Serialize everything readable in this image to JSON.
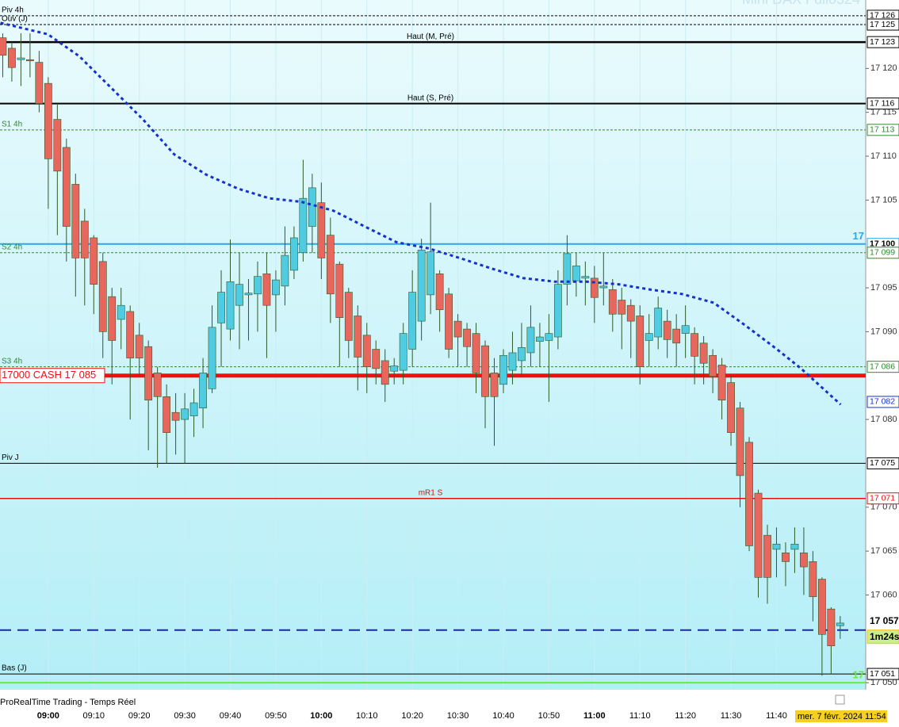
{
  "chart_data": {
    "type": "candlestick",
    "title": "Mini DAX Full0324",
    "source": "ProRealTime Trading - Temps Réel",
    "date": "mer. 7 févr. 2024 11:54",
    "up_color": "#4fcbe2",
    "down_color": "#e8675d",
    "wick_color": "#2f5a2a",
    "xlim": [
      529.4,
      719.6
    ],
    "ylim": [
      17049.2,
      17127.8
    ],
    "xticks": [
      {
        "value": 540,
        "label": "09:00"
      },
      {
        "value": 550,
        "label": "09:10"
      },
      {
        "value": 560,
        "label": "09:20"
      },
      {
        "value": 570,
        "label": "09:30"
      },
      {
        "value": 580,
        "label": "09:40"
      },
      {
        "value": 590,
        "label": "09:50"
      },
      {
        "value": 600,
        "label": "10:00"
      },
      {
        "value": 610,
        "label": "10:10"
      },
      {
        "value": 620,
        "label": "10:20"
      },
      {
        "value": 630,
        "label": "10:30"
      },
      {
        "value": 640,
        "label": "10:40"
      },
      {
        "value": 650,
        "label": "10:50"
      },
      {
        "value": 660,
        "label": "11:00"
      },
      {
        "value": 670,
        "label": "11:10"
      },
      {
        "value": 680,
        "label": "11:20"
      },
      {
        "value": 690,
        "label": "11:30"
      },
      {
        "value": 700,
        "label": "11:40"
      }
    ],
    "yticks": [
      {
        "value": 17050,
        "label": "17 050"
      },
      {
        "value": 17060,
        "label": "17 060"
      },
      {
        "value": 17065,
        "label": "17 065"
      },
      {
        "value": 17070,
        "label": "17 070"
      },
      {
        "value": 17080,
        "label": "17 080"
      },
      {
        "value": 17090,
        "label": "17 090"
      },
      {
        "value": 17095,
        "label": "17 095"
      },
      {
        "value": 17105,
        "label": "17 105"
      },
      {
        "value": 17110,
        "label": "17 110"
      },
      {
        "value": 17115,
        "label": "17 115"
      },
      {
        "value": 17120,
        "label": "17 120"
      }
    ],
    "x": [
      530,
      532,
      534,
      536,
      538,
      540,
      542,
      544,
      546,
      548,
      550,
      552,
      554,
      556,
      558,
      560,
      562,
      564,
      566,
      568,
      570,
      572,
      574,
      576,
      578,
      580,
      582,
      584,
      586,
      588,
      590,
      592,
      594,
      596,
      598,
      600,
      602,
      604,
      606,
      608,
      610,
      612,
      614,
      616,
      618,
      620,
      622,
      624,
      626,
      628,
      630,
      632,
      634,
      636,
      638,
      640,
      642,
      644,
      646,
      648,
      650,
      652,
      654,
      656,
      658,
      660,
      662,
      664,
      666,
      668,
      670,
      672,
      674,
      676,
      678,
      680,
      682,
      684,
      686,
      688,
      690,
      692,
      694,
      696,
      698,
      700,
      702,
      704,
      706,
      708,
      710,
      712,
      714
    ],
    "open": [
      17123.5,
      17122.3,
      17121,
      17121,
      17120.7,
      17118.3,
      17114.2,
      17111,
      17106.8,
      17102.6,
      17100.7,
      17098,
      17094,
      17091.4,
      17092.3,
      17089.6,
      17088.3,
      17085.3,
      17082.6,
      17080.8,
      17080,
      17080.4,
      17081.3,
      17083.5,
      17091,
      17090.3,
      17093,
      17094.2,
      17094.3,
      17096.6,
      17094.2,
      17095.2,
      17097,
      17099,
      17102,
      17104.7,
      17101,
      17097.7,
      17094.5,
      17091.8,
      17089.6,
      17088,
      17086.7,
      17085.5,
      17085.6,
      17088,
      17091.2,
      17094.2,
      17096.6,
      17094.3,
      17091.2,
      17090.3,
      17089.8,
      17088.4,
      17085.3,
      17084,
      17085.6,
      17086.7,
      17087.6,
      17088.9,
      17089,
      17089.4,
      17095.4,
      17095.8,
      17096.1,
      17096.1,
      17095,
      17094.8,
      17093.6,
      17093,
      17091.8,
      17089,
      17089.4,
      17091.2,
      17090.3,
      17089.8,
      17089.8,
      17088.7,
      17087.3,
      17086.2,
      17084.2,
      17081.3,
      17077.4,
      17071.6,
      17066.8,
      17065.2,
      17064.8,
      17065.2,
      17064.8,
      17063.8,
      17061.8,
      17058.4,
      17056.5
    ],
    "high": [
      17124,
      17123,
      17124,
      17124,
      17122,
      17119,
      17116,
      17112,
      17108,
      17104,
      17101,
      17099,
      17095,
      17095,
      17093,
      17091,
      17089,
      17086,
      17084,
      17083,
      17083,
      17083.5,
      17087,
      17093,
      17097,
      17100.5,
      17099,
      17096,
      17098,
      17099,
      17097,
      17102,
      17102,
      17109.6,
      17108,
      17107,
      17103,
      17098,
      17095,
      17093,
      17091,
      17089,
      17088,
      17087,
      17091,
      17097,
      17100.6,
      17104.7,
      17097,
      17095,
      17092,
      17091,
      17091,
      17089,
      17087,
      17088,
      17090,
      17091,
      17093,
      17091,
      17092,
      17097,
      17101,
      17099,
      17098,
      17097.5,
      17099,
      17096,
      17095,
      17093.7,
      17093,
      17092,
      17094,
      17092.5,
      17092,
      17093,
      17090.5,
      17089.5,
      17088,
      17087,
      17085,
      17082,
      17078,
      17072,
      17068,
      17067.7,
      17066,
      17067.7,
      17067.7,
      17065,
      17062,
      17058.6,
      17057.6
    ],
    "low": [
      17119,
      17118.5,
      17118,
      17119,
      17115,
      17104,
      17101,
      17098,
      17094,
      17093,
      17092,
      17087,
      17084,
      17088,
      17080,
      17085,
      17076.5,
      17074.5,
      17075,
      17076,
      17075,
      17078,
      17079,
      17083,
      17086,
      17089,
      17088,
      17089,
      17090,
      17087,
      17090,
      17093,
      17096,
      17098,
      17099,
      17096,
      17091,
      17086,
      17087,
      17083.3,
      17083,
      17084,
      17082,
      17084,
      17084,
      17086,
      17089,
      17092,
      17090,
      17087,
      17086,
      17086,
      17083,
      17079,
      17077,
      17083,
      17084,
      17085,
      17086,
      17086,
      17082,
      17088,
      17093,
      17094,
      17093,
      17091,
      17093,
      17090,
      17088,
      17087,
      17084,
      17086,
      17088,
      17087,
      17086,
      17087,
      17084,
      17084,
      17083,
      17080,
      17077,
      17070,
      17065,
      17059.7,
      17059,
      17062,
      17061,
      17062.5,
      17060,
      17057,
      17050.8,
      17051,
      17055
    ],
    "close": [
      17121.5,
      17120.1,
      17121.2,
      17120.9,
      17116,
      17109.7,
      17108.3,
      17102,
      17098.4,
      17098.4,
      17095.4,
      17090,
      17089,
      17093,
      17087,
      17087,
      17082.2,
      17082.6,
      17078.5,
      17079.9,
      17081.2,
      17081.9,
      17085.3,
      17090.5,
      17094.5,
      17095.7,
      17095.4,
      17094.4,
      17096.3,
      17093,
      17095.9,
      17098.7,
      17100.7,
      17105.2,
      17106.4,
      17098.4,
      17094.3,
      17091.6,
      17089,
      17087.1,
      17086,
      17085.8,
      17084,
      17086.1,
      17089.8,
      17094.5,
      17099.3,
      17099.1,
      17092.5,
      17088,
      17089.4,
      17088.3,
      17085.3,
      17082.6,
      17082.6,
      17087.3,
      17087.6,
      17088.2,
      17090.5,
      17089.4,
      17089.8,
      17095.4,
      17098.9,
      17097.5,
      17096.3,
      17093.9,
      17095.2,
      17092,
      17092,
      17091.2,
      17086,
      17089.8,
      17092.7,
      17089.1,
      17088.7,
      17090.7,
      17087.2,
      17086.4,
      17084.9,
      17082.2,
      17078.5,
      17073.6,
      17065.6,
      17062,
      17062,
      17065.8,
      17063.8,
      17065.8,
      17063.2,
      17059.8,
      17055.5,
      17054.2,
      17056.8
    ],
    "ma": {
      "color": "#1530d0",
      "x": [
        529.5,
        539.9,
        546.8,
        553.8,
        560.8,
        567.7,
        574.7,
        581.7,
        588.6,
        595.6,
        602.6,
        609.5,
        616.5,
        623.5,
        630.4,
        637.4,
        644.4,
        651.4,
        658.3,
        665.3,
        672.3,
        679.2,
        686.2,
        693.2,
        700.1,
        705.4,
        714.1
      ],
      "values": [
        17125.2,
        17123.9,
        17121.4,
        17117.8,
        17114.2,
        17110.2,
        17107.9,
        17106.3,
        17105.2,
        17104.8,
        17103.8,
        17102,
        17100.2,
        17099.5,
        17098.4,
        17097.2,
        17096.1,
        17095.7,
        17095.7,
        17095.4,
        17094.8,
        17094.3,
        17093.3,
        17090.7,
        17088,
        17085.8,
        17081.7
      ]
    },
    "levels": [
      {
        "value": 17126,
        "label": "17 126",
        "name": "Piv 4h",
        "name_pos": "left",
        "color": "#000000",
        "style": "dashed",
        "width": 1
      },
      {
        "value": 17125,
        "label": "17 125",
        "name": "Ouv (J)",
        "name_pos": "left",
        "color": "#000000",
        "style": "dashed",
        "width": 1
      },
      {
        "value": 17123,
        "label": "17 123",
        "name": "Haut (M, Pré)",
        "name_pos": "center",
        "color": "#000000",
        "style": "solid",
        "width": 2.5
      },
      {
        "value": 17116,
        "label": "17 116",
        "name": "Haut (S, Pré)",
        "name_pos": "center",
        "color": "#000000",
        "style": "solid",
        "width": 2
      },
      {
        "value": 17113,
        "label": "17 113",
        "name": "S1 4h",
        "name_pos": "left",
        "color": "#2e8b2e",
        "style": "dashed",
        "width": 1
      },
      {
        "value": 17100,
        "label": "17 100",
        "edge": "17",
        "color": "#2aa8e8",
        "style": "solid",
        "width": 2
      },
      {
        "value": 17099,
        "label": "17 099",
        "name": "S2 4h",
        "name_pos": "left",
        "color": "#2e8b2e",
        "style": "dashed",
        "width": 1
      },
      {
        "value": 17086,
        "label": "17 086",
        "name": "S3 4h",
        "name_pos": "left",
        "color": "#2e8b2e",
        "style": "dashed",
        "width": 1
      },
      {
        "value": 17085,
        "name": "17000 CASH 17 085",
        "name_pos": "box",
        "color": "#ee1111",
        "style": "solid",
        "width": 5
      },
      {
        "value": 17082,
        "label": "17 082",
        "color": "#1530d0",
        "style": "none",
        "width": 0
      },
      {
        "value": 17075,
        "label": "17 075",
        "name": "Piv J",
        "name_pos": "left",
        "color": "#000000",
        "style": "solid",
        "width": 1
      },
      {
        "value": 17071,
        "label": "17 071",
        "name": "mR1 S",
        "name_pos": "center",
        "color": "#dd1111",
        "style": "solid",
        "width": 1.5
      },
      {
        "value": 17056,
        "color": "#1a2aa0",
        "style": "longdash",
        "width": 2
      },
      {
        "value": 17051,
        "label": "17 051",
        "name": "Bas (J)",
        "name_pos": "left",
        "color": "#000000",
        "style": "solid",
        "width": 1
      },
      {
        "value": 17050,
        "edge": "17",
        "color": "#66ee33",
        "style": "solid",
        "width": 2
      }
    ],
    "last": {
      "value": 17057,
      "label": "17 057",
      "countdown": "1m24s"
    }
  }
}
